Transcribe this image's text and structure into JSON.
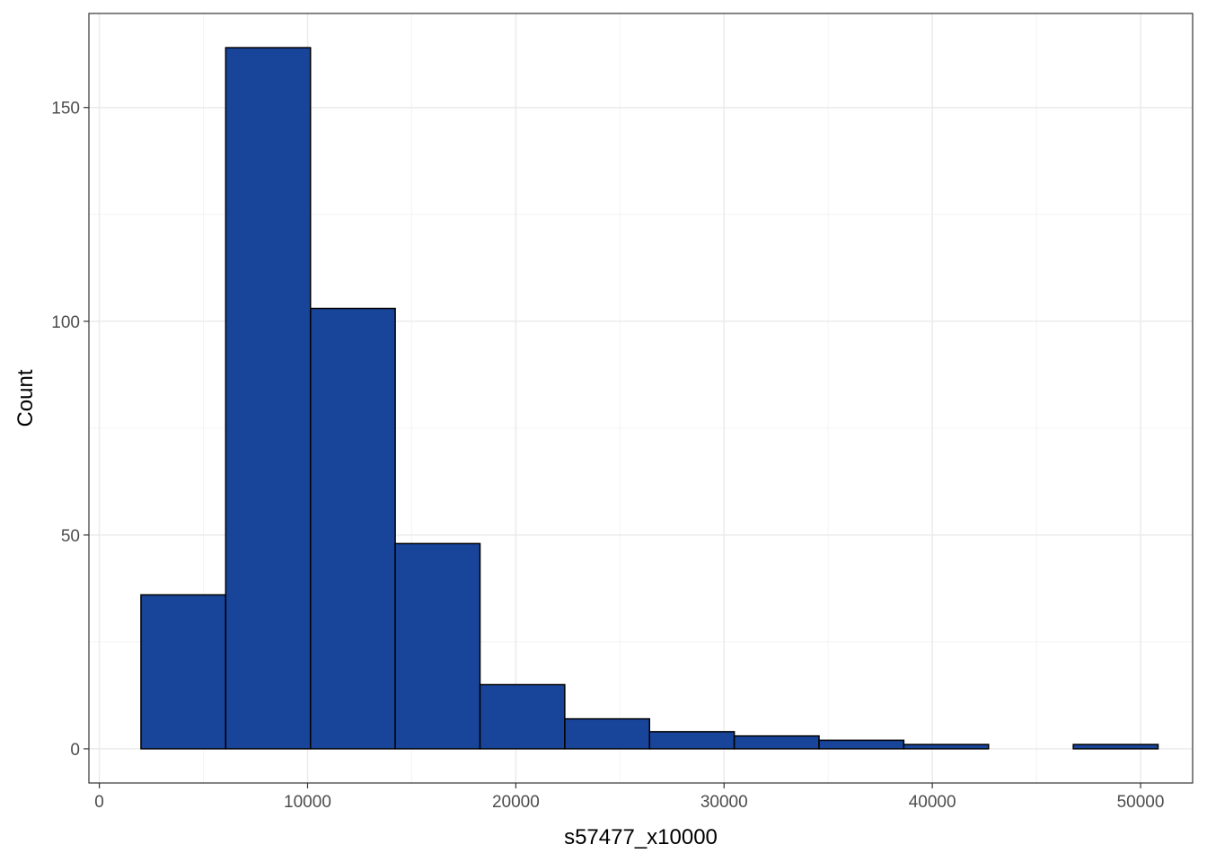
{
  "chart_data": {
    "type": "bar",
    "subtype": "histogram",
    "title": "",
    "xlabel": "s57477_x10000",
    "ylabel": "Count",
    "xlim": [
      -500,
      52500
    ],
    "ylim": [
      -8,
      172
    ],
    "x_ticks": [
      0,
      10000,
      20000,
      30000,
      40000,
      50000
    ],
    "x_tick_labels": [
      "0",
      "10000",
      "20000",
      "30000",
      "40000",
      "50000"
    ],
    "y_ticks": [
      0,
      50,
      100,
      150
    ],
    "y_tick_labels": [
      "0",
      "50",
      "100",
      "150"
    ],
    "grid": true,
    "legend": "none",
    "bins": [
      {
        "x0": 2000,
        "x1": 6070,
        "count": 36
      },
      {
        "x0": 6070,
        "x1": 10140,
        "count": 164
      },
      {
        "x0": 10140,
        "x1": 14210,
        "count": 103
      },
      {
        "x0": 14210,
        "x1": 18280,
        "count": 48
      },
      {
        "x0": 18280,
        "x1": 22350,
        "count": 15
      },
      {
        "x0": 22350,
        "x1": 26420,
        "count": 7
      },
      {
        "x0": 26420,
        "x1": 30490,
        "count": 4
      },
      {
        "x0": 30490,
        "x1": 34560,
        "count": 3
      },
      {
        "x0": 34560,
        "x1": 38630,
        "count": 2
      },
      {
        "x0": 38630,
        "x1": 42700,
        "count": 1
      },
      {
        "x0": 42700,
        "x1": 46770,
        "count": 0
      },
      {
        "x0": 46770,
        "x1": 50840,
        "count": 1
      }
    ],
    "colors": {
      "bar_fill": "#18449a",
      "bar_stroke": "#000000",
      "grid_major": "#ebebeb",
      "grid_minor": "#f4f4f4",
      "panel_border": "#333333",
      "tick_text": "#4d4d4d"
    }
  }
}
